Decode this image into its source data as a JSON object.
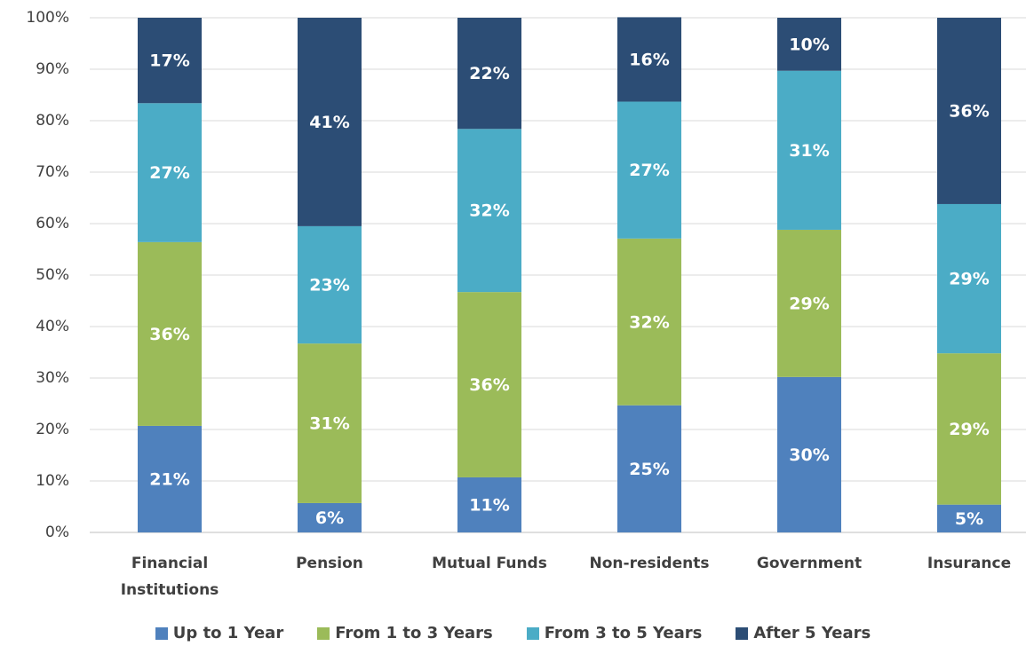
{
  "chart_data": {
    "type": "stacked-bar",
    "categories": [
      "Financial Institutions",
      "Pension",
      "Mutual Funds",
      "Non-residents",
      "Government",
      "Insurance"
    ],
    "series": [
      {
        "name": "Up to 1 Year",
        "color": "#4f81bd",
        "values": [
          20.7,
          5.7,
          10.7,
          24.7,
          30.2,
          5.4
        ],
        "value_labels": [
          "21%",
          "6%",
          "11%",
          "25%",
          "30%",
          "5%"
        ]
      },
      {
        "name": "From 1 to 3 Years",
        "color": "#9bbb59",
        "values": [
          35.7,
          31.0,
          36.0,
          32.4,
          28.6,
          29.4
        ],
        "value_labels": [
          "36%",
          "31%",
          "36%",
          "32%",
          "29%",
          "29%"
        ]
      },
      {
        "name": "From 3 to 5 Years",
        "color": "#4bacc6",
        "values": [
          27.0,
          22.8,
          31.7,
          26.6,
          30.9,
          29.0
        ],
        "value_labels": [
          "27%",
          "23%",
          "32%",
          "27%",
          "31%",
          "29%"
        ]
      },
      {
        "name": "After 5 Years",
        "color": "#2c4d75",
        "values": [
          16.6,
          40.5,
          21.6,
          16.4,
          10.3,
          36.2
        ],
        "value_labels": [
          "17%",
          "41%",
          "22%",
          "16%",
          "10%",
          "36%"
        ]
      }
    ],
    "ylim": [
      0,
      100
    ],
    "yticks": [
      {
        "value": 0,
        "label": "0%"
      },
      {
        "value": 10,
        "label": "10%"
      },
      {
        "value": 20,
        "label": "20%"
      },
      {
        "value": 30,
        "label": "30%"
      },
      {
        "value": 40,
        "label": "40%"
      },
      {
        "value": 50,
        "label": "50%"
      },
      {
        "value": 60,
        "label": "60%"
      },
      {
        "value": 70,
        "label": "70%"
      },
      {
        "value": 80,
        "label": "80%"
      },
      {
        "value": 90,
        "label": "90%"
      },
      {
        "value": 100,
        "label": "100%"
      }
    ],
    "grid": true
  }
}
